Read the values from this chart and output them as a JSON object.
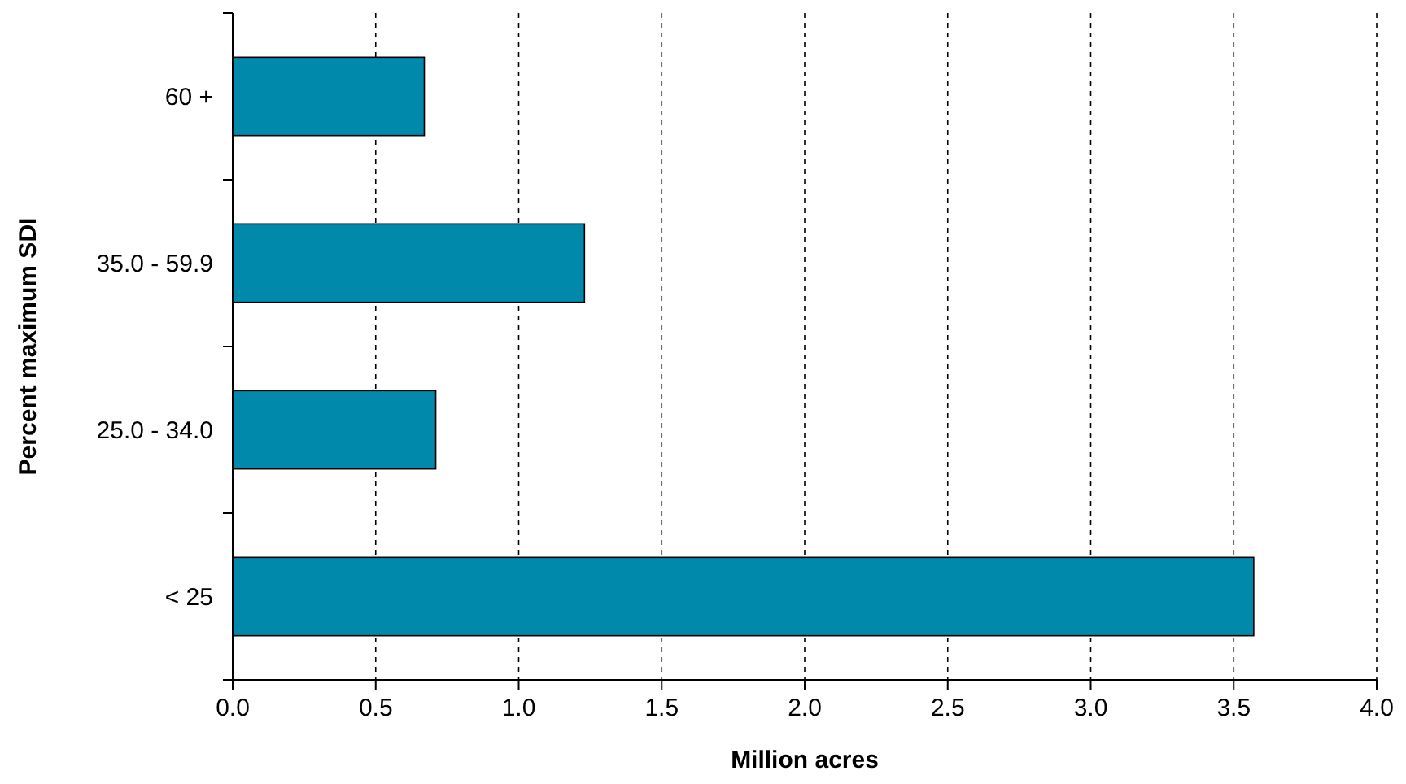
{
  "chart_data": {
    "type": "bar",
    "orientation": "horizontal",
    "xlabel": "Million acres",
    "ylabel": "Percent maximum SDI",
    "categories": [
      "60 +",
      "35.0 - 59.9",
      "25.0 - 34.0",
      "< 25"
    ],
    "values": [
      0.67,
      1.23,
      0.71,
      3.57
    ],
    "color": "#0089aa",
    "xlim": [
      0,
      4
    ],
    "xticks": [
      {
        "value": 0,
        "label": "0.0"
      },
      {
        "value": 0.5,
        "label": "0.5"
      },
      {
        "value": 1,
        "label": "1.0"
      },
      {
        "value": 1.5,
        "label": "1.5"
      },
      {
        "value": 2,
        "label": "2.0"
      },
      {
        "value": 2.5,
        "label": "2.5"
      },
      {
        "value": 3,
        "label": "3.0"
      },
      {
        "value": 3.5,
        "label": "3.5"
      },
      {
        "value": 4,
        "label": "4.0"
      }
    ],
    "grid": "x"
  }
}
